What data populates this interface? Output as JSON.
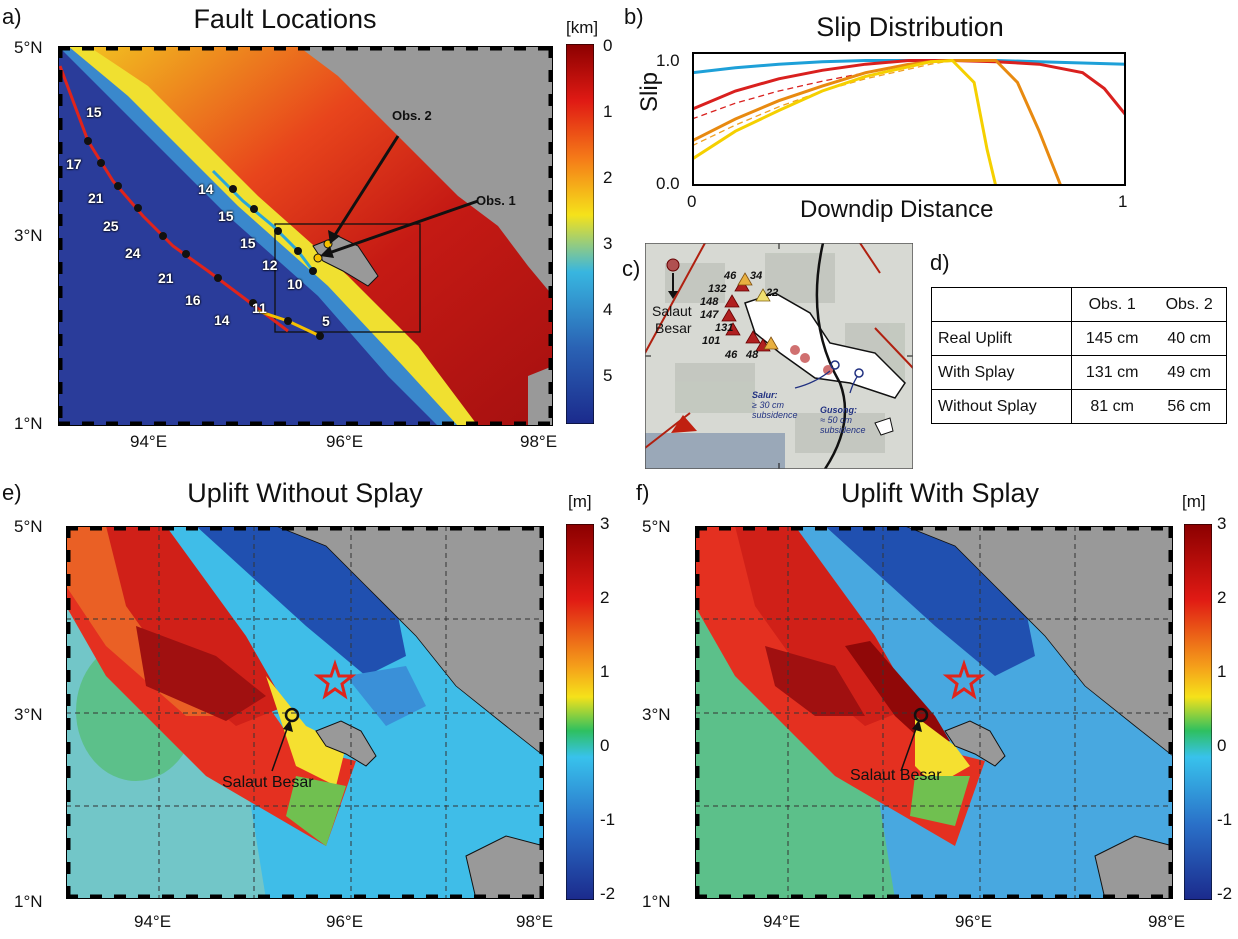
{
  "panel_labels": {
    "a": "a)",
    "b": "b)",
    "c": "c)",
    "d": "d)",
    "e": "e)",
    "f": "f)"
  },
  "panel_a": {
    "title": "Fault Locations",
    "cb_unit": "[km]",
    "cb_ticks": [
      "0",
      "1",
      "2",
      "3",
      "4",
      "5"
    ],
    "lat_labels": [
      "5°N",
      "3°N",
      "1°N"
    ],
    "lon_labels": [
      "94°E",
      "96°E",
      "98°E"
    ],
    "obs1": "Obs. 1",
    "obs2": "Obs. 2",
    "red_fault_numbers": [
      "15",
      "17",
      "21",
      "25",
      "24",
      "21",
      "16",
      "14"
    ],
    "blue_fault_numbers": [
      "14",
      "15",
      "15",
      "12",
      "10"
    ],
    "yellow_fault_numbers": [
      "11",
      "5"
    ],
    "colors": {
      "red_fault": "#e0241b",
      "blue_fault": "#29a5d8",
      "yellow_fault": "#f5c000",
      "land": "#999999"
    }
  },
  "panel_b": {
    "title": "Slip Distribution",
    "ylabel": "Slip",
    "xlabel": "Downdip Distance",
    "y_ticks": [
      "1.0",
      "0.0"
    ],
    "x_ticks": [
      "0",
      "1"
    ],
    "chart_data": {
      "type": "line",
      "xlim": [
        0,
        1
      ],
      "ylim": [
        0,
        1.1
      ],
      "series": [
        {
          "color": "#1ea0d8",
          "style": "solid",
          "x": [
            0,
            0.1,
            0.2,
            0.3,
            0.4,
            0.5,
            0.6,
            0.7,
            0.8,
            0.9,
            1.0
          ],
          "y": [
            0.93,
            0.97,
            1.0,
            1.02,
            1.03,
            1.03,
            1.03,
            1.03,
            1.02,
            1.01,
            1.0
          ]
        },
        {
          "color": "#d9201e",
          "style": "solid",
          "x": [
            0,
            0.1,
            0.2,
            0.3,
            0.4,
            0.5,
            0.6,
            0.7,
            0.8,
            0.9,
            0.95,
            1.0
          ],
          "y": [
            0.63,
            0.78,
            0.88,
            0.95,
            1.0,
            1.03,
            1.03,
            1.02,
            1.0,
            0.93,
            0.8,
            0.58
          ]
        },
        {
          "color": "#d9201e",
          "style": "dashed",
          "x": [
            0,
            0.1,
            0.2,
            0.3,
            0.4,
            0.5,
            0.6
          ],
          "y": [
            0.55,
            0.68,
            0.78,
            0.86,
            0.93,
            1.0,
            1.03
          ]
        },
        {
          "color": "#f0a020",
          "style": "dashed",
          "x": [
            0,
            0.1,
            0.2,
            0.3,
            0.4,
            0.5,
            0.55,
            0.6
          ],
          "y": [
            0.33,
            0.5,
            0.65,
            0.78,
            0.88,
            0.96,
            1.0,
            1.03
          ]
        },
        {
          "color": "#e88a10",
          "style": "solid",
          "x": [
            0,
            0.1,
            0.2,
            0.3,
            0.4,
            0.5,
            0.55,
            0.6,
            0.7,
            0.75,
            0.8,
            0.85
          ],
          "y": [
            0.37,
            0.55,
            0.7,
            0.82,
            0.93,
            1.0,
            1.02,
            1.03,
            1.03,
            0.85,
            0.45,
            0.0
          ]
        },
        {
          "color": "#f5d000",
          "style": "solid",
          "x": [
            0,
            0.1,
            0.2,
            0.3,
            0.4,
            0.5,
            0.55,
            0.6,
            0.65,
            0.68,
            0.7
          ],
          "y": [
            0.22,
            0.45,
            0.62,
            0.78,
            0.9,
            0.98,
            1.02,
            1.03,
            0.85,
            0.3,
            0.0
          ]
        }
      ]
    }
  },
  "panel_c": {
    "salaut": "Salaut",
    "besar": "Besar",
    "numbers": [
      "46",
      "34",
      "132",
      "22",
      "148",
      "147",
      "131",
      "101",
      "46",
      "48"
    ],
    "salur_title": "Salur:",
    "salur_line1": "≥ 30 cm",
    "salur_line2": "subsidence",
    "gusong_title": "Gusong:",
    "gusong_line1": "≈ 50 cm",
    "gusong_line2": "subsidence"
  },
  "panel_d": {
    "headers": [
      "",
      "Obs. 1",
      "Obs. 2"
    ],
    "rows": [
      {
        "label": "Real Uplift",
        "obs1": "145 cm",
        "obs2": "40 cm"
      },
      {
        "label": "With Splay",
        "obs1": "131 cm",
        "obs2": "49 cm"
      },
      {
        "label": "Without Splay",
        "obs1": "81 cm",
        "obs2": "56 cm"
      }
    ]
  },
  "panel_e": {
    "title": "Uplift Without Splay",
    "cb_unit": "[m]",
    "cb_ticks": [
      "3",
      "2",
      "1",
      "0",
      "-1",
      "-2"
    ],
    "lat_labels": [
      "5°N",
      "3°N",
      "1°N"
    ],
    "lon_labels": [
      "94°E",
      "96°E",
      "98°E"
    ],
    "marker_label": "Salaut Besar"
  },
  "panel_f": {
    "title": "Uplift With Splay",
    "cb_unit": "[m]",
    "cb_ticks": [
      "3",
      "2",
      "1",
      "0",
      "-1",
      "-2"
    ],
    "lat_labels": [
      "5°N",
      "3°N",
      "1°N"
    ],
    "lon_labels": [
      "94°E",
      "96°E",
      "98°E"
    ],
    "marker_label": "Salaut Besar"
  }
}
